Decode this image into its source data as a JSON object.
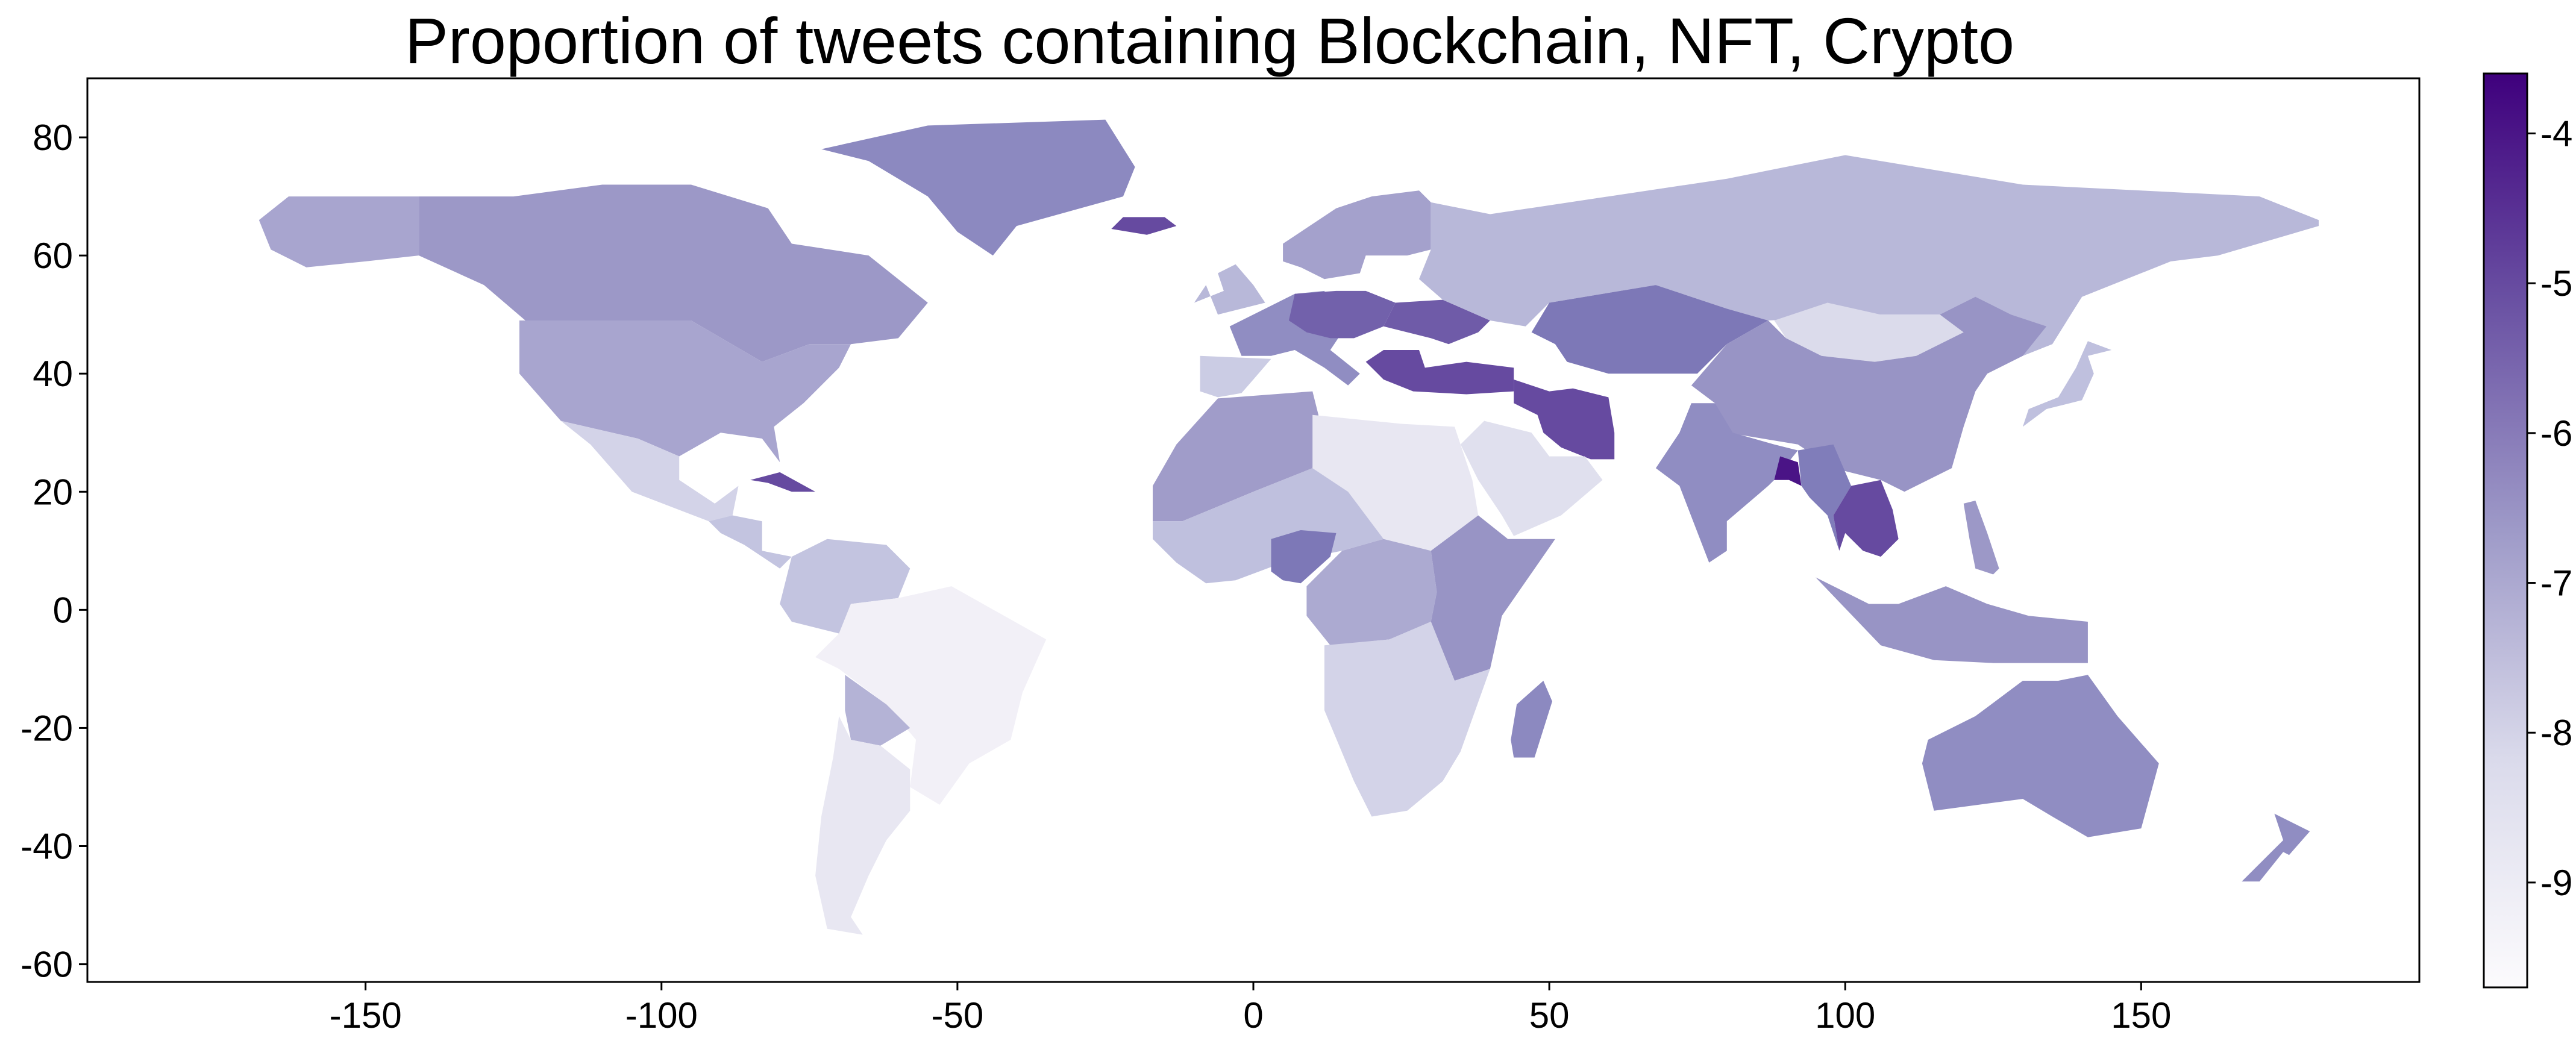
{
  "title": "Proportion of tweets containing Blockchain, NFT, Crypto",
  "map": {
    "x_ticks": [
      "-150",
      "-100",
      "-50",
      "0",
      "50",
      "100",
      "150"
    ],
    "y_ticks": [
      "80",
      "60",
      "40",
      "20",
      "0",
      "-20",
      "-40",
      "-60"
    ],
    "xlim": [
      -197,
      197
    ],
    "ylim": [
      -63,
      90
    ],
    "projection": "equirectangular",
    "colormap": "Purples",
    "colorbar": {
      "range": [
        -9.7,
        -3.6
      ],
      "ticks": [
        "-4",
        "-5",
        "-6",
        "-7",
        "-8",
        "-9"
      ],
      "low_color": "#fcfbfd",
      "high_color": "#3f007d"
    },
    "regions": [
      {
        "name": "canada",
        "value": -6.6
      },
      {
        "name": "alaska",
        "value": -6.9
      },
      {
        "name": "greenland",
        "value": -6.2
      },
      {
        "name": "usa",
        "value": -6.9
      },
      {
        "name": "mexico",
        "value": -8.0
      },
      {
        "name": "central-america",
        "value": -7.6
      },
      {
        "name": "cuba",
        "value": -5.0
      },
      {
        "name": "colombia-venezuela",
        "value": -7.6
      },
      {
        "name": "brazil",
        "value": -9.1
      },
      {
        "name": "bolivia",
        "value": -7.2
      },
      {
        "name": "argentina-chile",
        "value": -8.7
      },
      {
        "name": "west-europe",
        "value": -6.3
      },
      {
        "name": "iberia",
        "value": -7.8
      },
      {
        "name": "uk",
        "value": -7.3
      },
      {
        "name": "iceland",
        "value": -5.0
      },
      {
        "name": "scandinavia",
        "value": -6.8
      },
      {
        "name": "germany-region",
        "value": -5.4
      },
      {
        "name": "ukraine",
        "value": -5.3
      },
      {
        "name": "turkey-region",
        "value": -5.0
      },
      {
        "name": "russia",
        "value": -7.3
      },
      {
        "name": "kazakhstan",
        "value": -5.8
      },
      {
        "name": "iran",
        "value": -5.0
      },
      {
        "name": "mongolia",
        "value": -8.2
      },
      {
        "name": "china",
        "value": -6.5
      },
      {
        "name": "india",
        "value": -6.3
      },
      {
        "name": "bangladesh",
        "value": -4.0
      },
      {
        "name": "se-asia",
        "value": -5.9
      },
      {
        "name": "vietnam-thailand",
        "value": -5.0
      },
      {
        "name": "japan",
        "value": -7.5
      },
      {
        "name": "indonesia",
        "value": -6.5
      },
      {
        "name": "philippines",
        "value": -6.6
      },
      {
        "name": "australia",
        "value": -6.3
      },
      {
        "name": "new-zealand",
        "value": -6.3
      },
      {
        "name": "north-africa-west",
        "value": -6.7
      },
      {
        "name": "sahara-east",
        "value": -8.7
      },
      {
        "name": "sahel",
        "value": -7.5
      },
      {
        "name": "nigeria",
        "value": -5.8
      },
      {
        "name": "central-africa",
        "value": -7.0
      },
      {
        "name": "east-africa",
        "value": -6.5
      },
      {
        "name": "southern-africa",
        "value": -8.0
      },
      {
        "name": "madagascar",
        "value": -6.2
      },
      {
        "name": "arabia",
        "value": -8.4
      }
    ]
  }
}
